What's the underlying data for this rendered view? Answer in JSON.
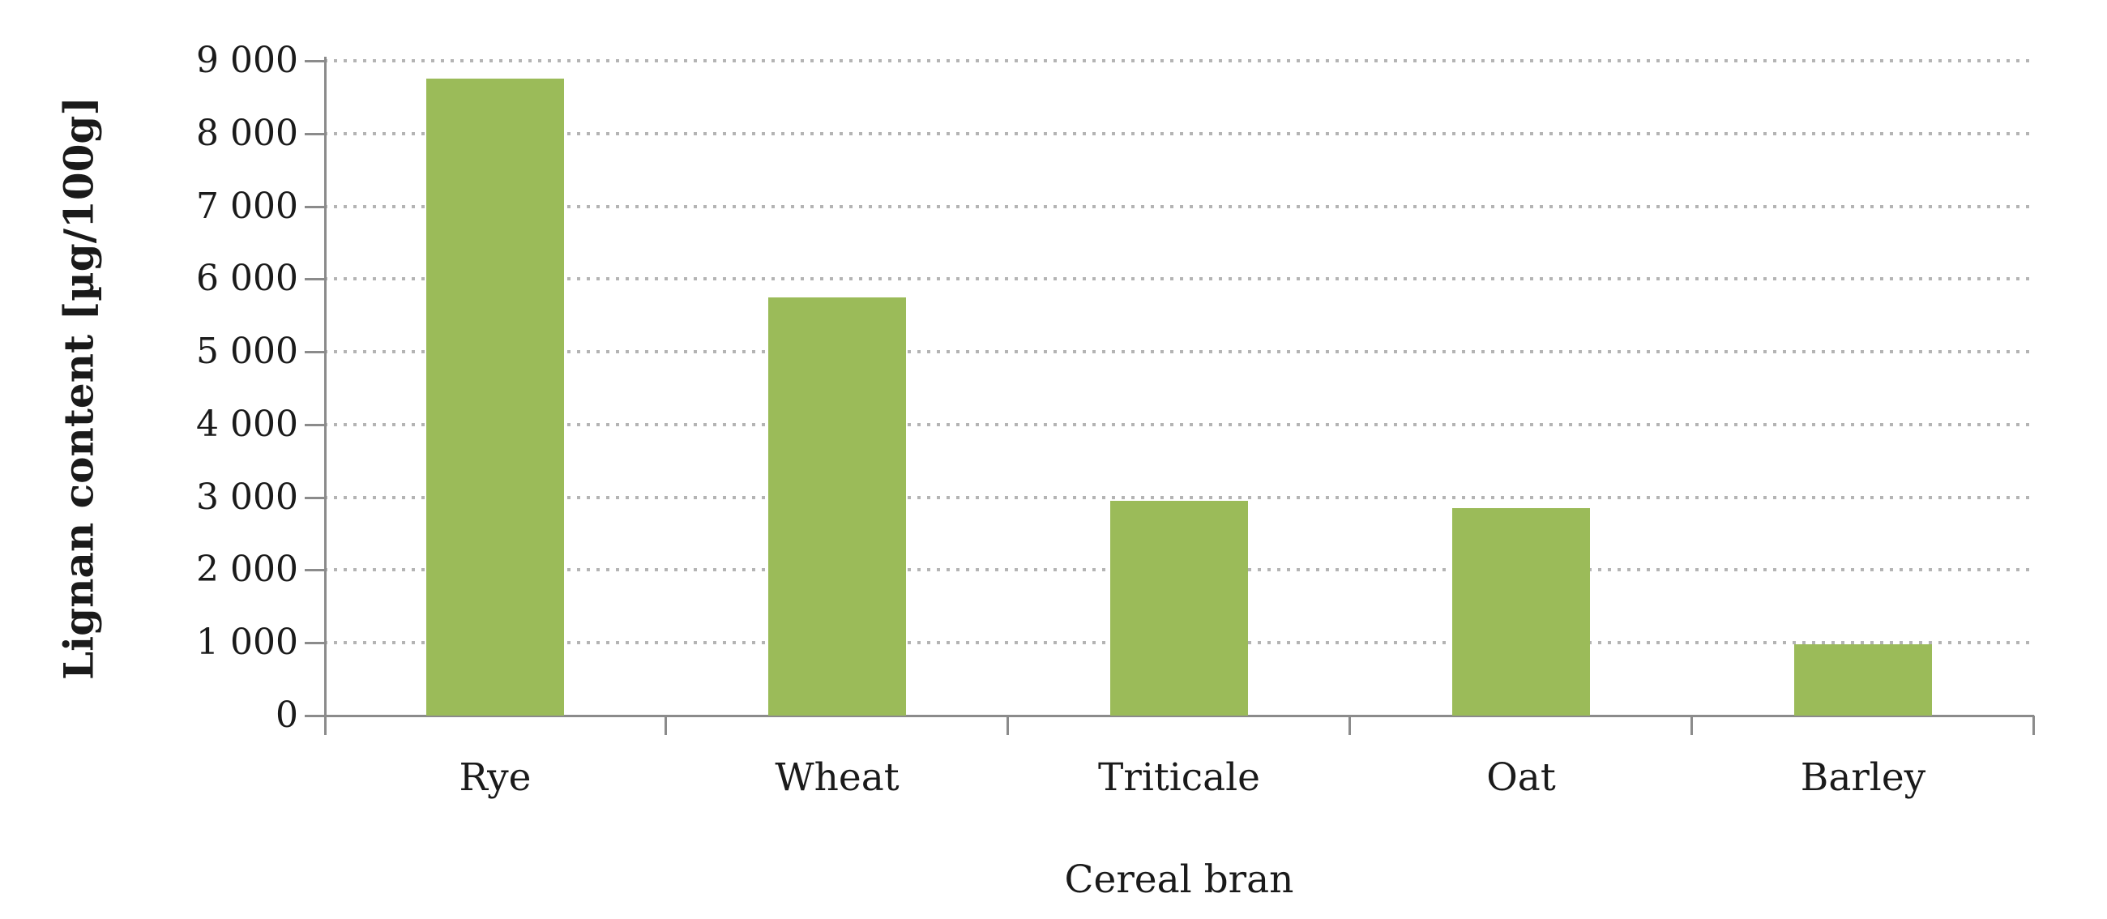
{
  "chart_data": {
    "type": "bar",
    "title": "",
    "categories": [
      "Rye",
      "Wheat",
      "Triticale",
      "Oat",
      "Barley"
    ],
    "values": [
      8750,
      5750,
      2950,
      2850,
      975
    ],
    "xlabel": "Cereal bran",
    "ylabel": "Lignan content [µg/100g]",
    "ylim": [
      0,
      9000
    ],
    "y_tick_step": 1000,
    "y_ticks": [
      0,
      1000,
      2000,
      3000,
      4000,
      5000,
      6000,
      7000,
      8000,
      9000
    ],
    "y_tick_labels": [
      "0",
      "1 000",
      "2 000",
      "3 000",
      "4 000",
      "5 000",
      "6 000",
      "7 000",
      "8 000",
      "9 000"
    ],
    "grid": "horizontal-dotted",
    "legend": "none",
    "bar_color": "#9bbb59",
    "axis_color": "#8b8b8b",
    "gridline_color": "#b4b4b4",
    "text_color": "#1a1a1a",
    "background_color": "#ffffff"
  }
}
